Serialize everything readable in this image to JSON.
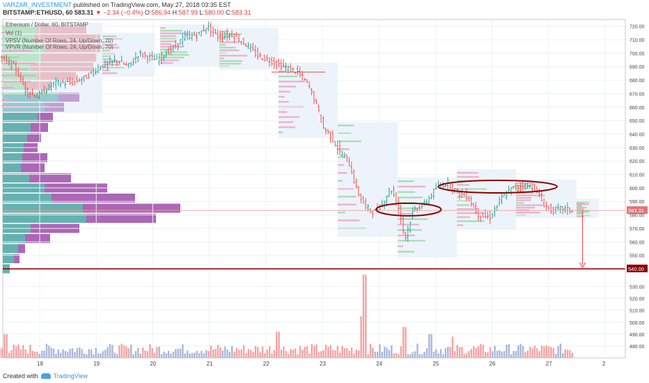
{
  "header": {
    "author": "VARZAR_INVESTMENT",
    "published": "published on TradingView.com, May 27, 2018 03:35 EST",
    "symbol": "BITSTAMP:ETHUSD, 60",
    "price": "583.31",
    "change": "▼ −2.34 (−0.4%)",
    "o_label": "O:",
    "o_value": "586.94",
    "h_label": "H:",
    "h_value": "587.99",
    "l_label": "L:",
    "l_value": "580.00",
    "c_label": "C:",
    "c_value": "583.31"
  },
  "legend": [
    "Ethereum / Dollar, 60, BITSTAMP",
    "Vol (1)",
    "VPSV (Number Of Rows, 24, Up/Down, 70)",
    "VPVR (Number Of Rows, 24, Up/Down, 70)"
  ],
  "footer": {
    "created_with": "Created with",
    "brand": "TradingView"
  },
  "colors": {
    "up": "#26a69a",
    "down": "#ef5350",
    "vol_up": "#a9b7d9",
    "vol_down": "#f3a3a3",
    "vp_teal": "#4aa3a3",
    "vp_purple": "#9c4ea8",
    "annotation": "#8b0000",
    "level": "#b22222"
  },
  "chart_data": {
    "type": "candlestick",
    "title": "Ethereum / Dollar, 60, BITSTAMP",
    "price_axis": {
      "ylim": [
        540,
        725
      ],
      "ticks": [
        "720.00",
        "710.00",
        "700.00",
        "690.00",
        "680.00",
        "670.00",
        "660.00",
        "650.00",
        "640.00",
        "630.00",
        "620.00",
        "610.00",
        "600.00",
        "590.00",
        "580.00",
        "570.00",
        "560.00",
        "550.00"
      ]
    },
    "volume_axis": {
      "ylim": [
        470,
        542
      ],
      "ticks": [
        "530.00",
        "520.00",
        "510.00",
        "500.00",
        "490.00",
        "480.00"
      ]
    },
    "x_ticks": [
      "18",
      "19",
      "20",
      "21",
      "22",
      "23",
      "24",
      "25",
      "26",
      "27",
      "2"
    ],
    "current_price_label": "583.31",
    "target_price_label": "540.00",
    "price_path": [
      {
        "x": 17.0,
        "y": 700
      },
      {
        "x": 17.3,
        "y": 698
      },
      {
        "x": 17.6,
        "y": 690
      },
      {
        "x": 17.8,
        "y": 672
      },
      {
        "x": 18.0,
        "y": 668
      },
      {
        "x": 18.3,
        "y": 678
      },
      {
        "x": 18.6,
        "y": 678
      },
      {
        "x": 18.85,
        "y": 682
      },
      {
        "x": 19.1,
        "y": 690
      },
      {
        "x": 19.4,
        "y": 695
      },
      {
        "x": 19.6,
        "y": 690
      },
      {
        "x": 19.8,
        "y": 700
      },
      {
        "x": 20.1,
        "y": 695
      },
      {
        "x": 20.4,
        "y": 704
      },
      {
        "x": 20.6,
        "y": 712
      },
      {
        "x": 20.85,
        "y": 714
      },
      {
        "x": 21.0,
        "y": 720
      },
      {
        "x": 21.2,
        "y": 712
      },
      {
        "x": 21.45,
        "y": 714
      },
      {
        "x": 21.7,
        "y": 706
      },
      {
        "x": 21.9,
        "y": 698
      },
      {
        "x": 22.15,
        "y": 694
      },
      {
        "x": 22.35,
        "y": 690
      },
      {
        "x": 22.6,
        "y": 686
      },
      {
        "x": 22.8,
        "y": 676
      },
      {
        "x": 22.95,
        "y": 660
      },
      {
        "x": 23.05,
        "y": 645
      },
      {
        "x": 23.2,
        "y": 638
      },
      {
        "x": 23.35,
        "y": 626
      },
      {
        "x": 23.5,
        "y": 620
      },
      {
        "x": 23.65,
        "y": 598
      },
      {
        "x": 23.8,
        "y": 586
      },
      {
        "x": 23.95,
        "y": 582
      },
      {
        "x": 24.1,
        "y": 588
      },
      {
        "x": 24.25,
        "y": 600
      },
      {
        "x": 24.4,
        "y": 584
      },
      {
        "x": 24.5,
        "y": 562
      },
      {
        "x": 24.65,
        "y": 584
      },
      {
        "x": 24.85,
        "y": 588
      },
      {
        "x": 25.05,
        "y": 600
      },
      {
        "x": 25.25,
        "y": 604
      },
      {
        "x": 25.45,
        "y": 596
      },
      {
        "x": 25.6,
        "y": 594
      },
      {
        "x": 25.8,
        "y": 580
      },
      {
        "x": 26.0,
        "y": 578
      },
      {
        "x": 26.2,
        "y": 592
      },
      {
        "x": 26.4,
        "y": 600
      },
      {
        "x": 26.6,
        "y": 602
      },
      {
        "x": 26.8,
        "y": 600
      },
      {
        "x": 26.95,
        "y": 588
      },
      {
        "x": 27.1,
        "y": 583
      },
      {
        "x": 27.3,
        "y": 585
      },
      {
        "x": 27.42,
        "y": 583.31
      }
    ],
    "volume_spikes": [
      {
        "x": 23.75,
        "value": 540
      },
      {
        "x": 23.72,
        "value": 522
      },
      {
        "x": 23.68,
        "value": 505
      },
      {
        "x": 24.45,
        "value": 496
      },
      {
        "x": 22.2,
        "value": 492
      },
      {
        "x": 17.4,
        "value": 490
      },
      {
        "x": 25.3,
        "value": 488
      },
      {
        "x": 24.9,
        "value": 490
      }
    ],
    "annotations": {
      "ellipse_1": {
        "x_from": 23.95,
        "x_to": 25.1,
        "y": 584
      },
      "ellipse_2": {
        "x_from": 25.05,
        "x_to": 27.15,
        "y": 601
      },
      "resistance_line": {
        "x_from": 22.1,
        "x_to": 23.05,
        "y": 686
      },
      "support_line_price": 540,
      "arrow": {
        "x": 27.6,
        "y_from": 583.31,
        "y_to": 541
      }
    }
  }
}
